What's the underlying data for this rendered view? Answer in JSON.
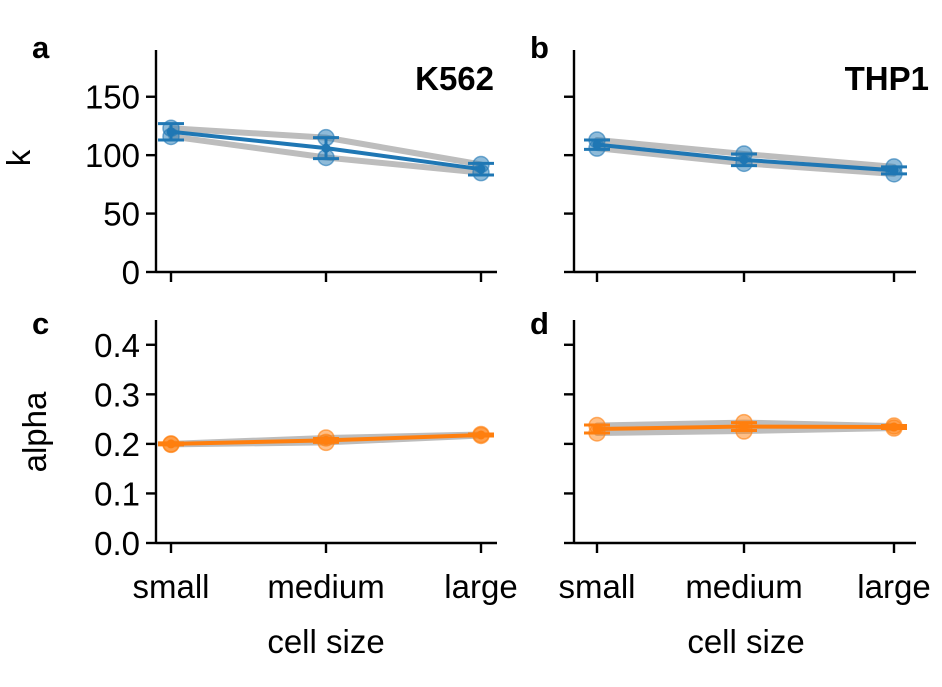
{
  "xlabel": "cell size",
  "categories": [
    "small",
    "medium",
    "large"
  ],
  "colors": {
    "k": "#1f77b4",
    "alpha": "#ff7f0e",
    "replicate": "#bdbdbd"
  },
  "chart_data": [
    {
      "id": "a",
      "type": "line",
      "panel_label": "a",
      "title": "K562",
      "ylabel": "k",
      "ylim": [
        0,
        190
      ],
      "yticks": [
        0,
        50,
        100,
        150
      ],
      "ytick_labels": [
        "0",
        "50",
        "100",
        "150"
      ],
      "categories": [
        "small",
        "medium",
        "large"
      ],
      "mean": [
        120,
        106,
        88
      ],
      "error": [
        7,
        9,
        5
      ],
      "replicates": [
        [
          123,
          115,
          92
        ],
        [
          116,
          98,
          85
        ]
      ],
      "series_color": "#1f77b4"
    },
    {
      "id": "b",
      "type": "line",
      "panel_label": "b",
      "title": "THP1",
      "ylabel": "",
      "ylim": [
        0,
        190
      ],
      "yticks": [
        0,
        50,
        100,
        150
      ],
      "ytick_labels": [
        "",
        "",
        "",
        ""
      ],
      "categories": [
        "small",
        "medium",
        "large"
      ],
      "mean": [
        109,
        96,
        87
      ],
      "error": [
        4,
        5,
        3
      ],
      "replicates": [
        [
          113,
          101,
          90
        ],
        [
          106,
          93,
          84
        ]
      ],
      "series_color": "#1f77b4"
    },
    {
      "id": "c",
      "type": "line",
      "panel_label": "c",
      "title": "",
      "ylabel": "alpha",
      "ylim": [
        0,
        0.45
      ],
      "yticks": [
        0,
        0.1,
        0.2,
        0.3,
        0.4
      ],
      "ytick_labels": [
        "0.0",
        "0.1",
        "0.2",
        "0.3",
        "0.4"
      ],
      "categories": [
        "small",
        "medium",
        "large"
      ],
      "mean": [
        0.2,
        0.207,
        0.218
      ],
      "error": [
        0.002,
        0.004,
        0.002
      ],
      "replicates": [
        [
          0.2,
          0.212,
          0.219
        ],
        [
          0.199,
          0.203,
          0.217
        ]
      ],
      "series_color": "#ff7f0e"
    },
    {
      "id": "d",
      "type": "line",
      "panel_label": "d",
      "title": "",
      "ylabel": "",
      "ylim": [
        0,
        0.45
      ],
      "yticks": [
        0,
        0.1,
        0.2,
        0.3,
        0.4
      ],
      "ytick_labels": [
        "",
        "",
        "",
        "",
        ""
      ],
      "categories": [
        "small",
        "medium",
        "large"
      ],
      "mean": [
        0.23,
        0.235,
        0.234
      ],
      "error": [
        0.008,
        0.008,
        0.003
      ],
      "replicates": [
        [
          0.237,
          0.243,
          0.236
        ],
        [
          0.222,
          0.226,
          0.232
        ]
      ],
      "series_color": "#ff7f0e"
    }
  ]
}
